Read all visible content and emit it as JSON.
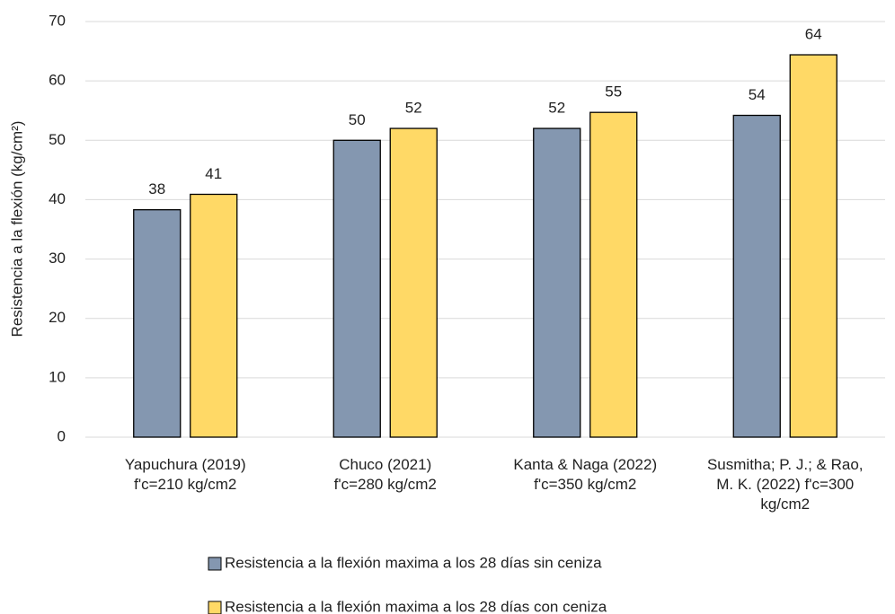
{
  "chart_data": {
    "type": "bar",
    "y_label": "Resistencia a la flexión (kg/cm²)",
    "categories": [
      "Yapuchura (2019)\nf'c=210 kg/cm2",
      "Chuco (2021)\nf'c=280 kg/cm2",
      "Kanta & Naga (2022)\nf'c=350 kg/cm2",
      "Susmitha; P. J.; & Rao,\nM. K. (2022)  f'c=300\nkg/cm2"
    ],
    "series": [
      {
        "name": "Resistencia a la flexión maxima a los 28 días sin ceniza",
        "color": "#8497b0",
        "values": [
          38.3,
          50,
          52,
          54.2
        ],
        "value_labels": [
          "38",
          "50",
          "52",
          "54"
        ]
      },
      {
        "name": "Resistencia a la flexión maxima a los 28 días con ceniza",
        "color": "#ffd966",
        "values": [
          40.9,
          52,
          54.7,
          64.4
        ],
        "value_labels": [
          "41",
          "52",
          "55",
          "64"
        ]
      }
    ],
    "ylim": [
      0,
      70
    ],
    "yticks": [
      0,
      10,
      20,
      30,
      40,
      50,
      60,
      70
    ],
    "grid": true
  }
}
